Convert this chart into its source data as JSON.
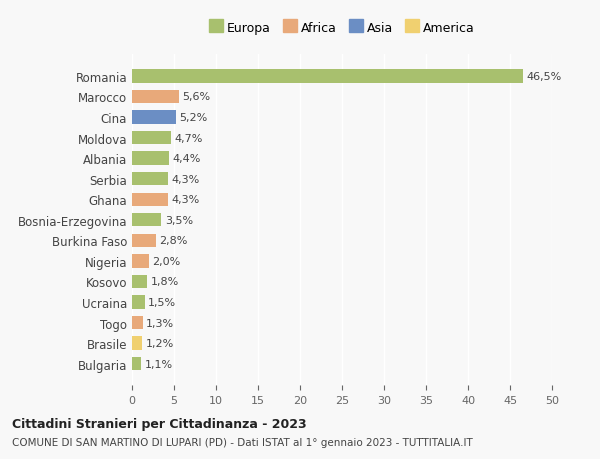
{
  "countries": [
    "Romania",
    "Marocco",
    "Cina",
    "Moldova",
    "Albania",
    "Serbia",
    "Ghana",
    "Bosnia-Erzegovina",
    "Burkina Faso",
    "Nigeria",
    "Kosovo",
    "Ucraina",
    "Togo",
    "Brasile",
    "Bulgaria"
  ],
  "values": [
    46.5,
    5.6,
    5.2,
    4.7,
    4.4,
    4.3,
    4.3,
    3.5,
    2.8,
    2.0,
    1.8,
    1.5,
    1.3,
    1.2,
    1.1
  ],
  "labels": [
    "46,5%",
    "5,6%",
    "5,2%",
    "4,7%",
    "4,4%",
    "4,3%",
    "4,3%",
    "3,5%",
    "2,8%",
    "2,0%",
    "1,8%",
    "1,5%",
    "1,3%",
    "1,2%",
    "1,1%"
  ],
  "continents": [
    "Europa",
    "Africa",
    "Asia",
    "Europa",
    "Europa",
    "Europa",
    "Africa",
    "Europa",
    "Africa",
    "Africa",
    "Europa",
    "Europa",
    "Africa",
    "America",
    "Europa"
  ],
  "colors": {
    "Europa": "#a8c06e",
    "Africa": "#e8a97a",
    "Asia": "#6b8ec4",
    "America": "#f0d070"
  },
  "legend_order": [
    "Europa",
    "Africa",
    "Asia",
    "America"
  ],
  "xlim": [
    0,
    50
  ],
  "xticks": [
    0,
    5,
    10,
    15,
    20,
    25,
    30,
    35,
    40,
    45,
    50
  ],
  "title": "Cittadini Stranieri per Cittadinanza - 2023",
  "subtitle": "COMUNE DI SAN MARTINO DI LUPARI (PD) - Dati ISTAT al 1° gennaio 2023 - TUTTITALIA.IT",
  "background_color": "#f8f8f8",
  "bar_height": 0.65
}
